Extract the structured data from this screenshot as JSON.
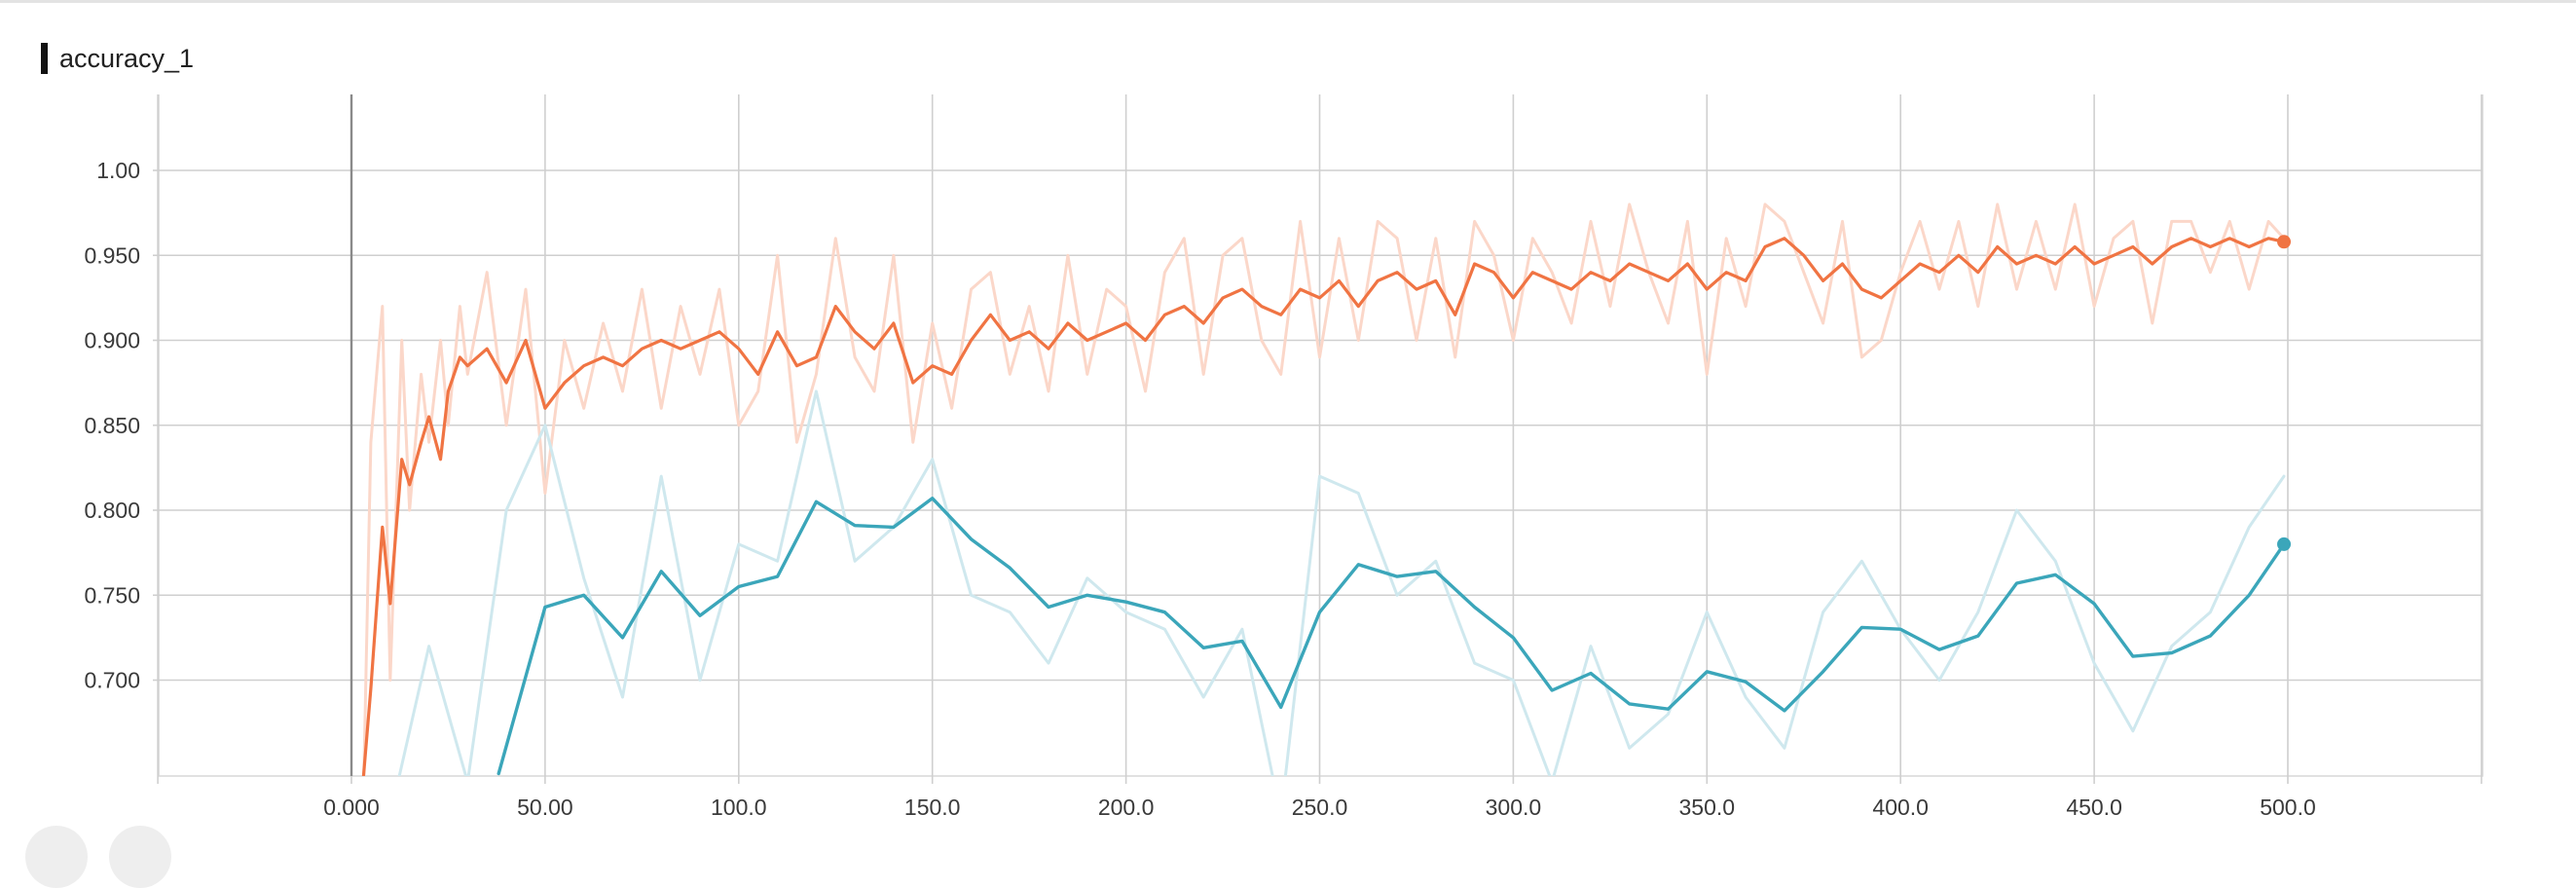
{
  "card": {
    "title": "accuracy_1"
  },
  "colors": {
    "train": "#f07443",
    "train_raw": "#fbd7c9",
    "eval": "#3ba6ba",
    "eval_raw": "#cfe8ee",
    "grid": "#cfcfcf"
  },
  "chart_data": {
    "type": "line",
    "title": "accuracy_1",
    "xlabel": "",
    "ylabel": "",
    "xlim": [
      -100,
      500
    ],
    "ylim": [
      0.645,
      1.045
    ],
    "x_tick_labels": [
      "0.000",
      "50.00",
      "100.0",
      "150.0",
      "200.0",
      "250.0",
      "300.0",
      "350.0",
      "400.0",
      "450.0",
      "500.0"
    ],
    "x_ticks": [
      0,
      50,
      100,
      150,
      200,
      250,
      300,
      350,
      400,
      450,
      500
    ],
    "y_tick_labels": [
      "0.700",
      "0.750",
      "0.800",
      "0.850",
      "0.900",
      "0.950",
      "1.00"
    ],
    "y_ticks": [
      0.7,
      0.75,
      0.8,
      0.85,
      0.9,
      0.95,
      1.0
    ],
    "grid": true,
    "series": [
      {
        "key": "train_smoothed",
        "role": "smoothed",
        "x": [
          3,
          5,
          8,
          10,
          13,
          15,
          18,
          20,
          23,
          25,
          28,
          30,
          35,
          40,
          45,
          50,
          55,
          60,
          65,
          70,
          75,
          80,
          85,
          90,
          95,
          100,
          105,
          110,
          115,
          120,
          125,
          130,
          135,
          140,
          145,
          150,
          155,
          160,
          165,
          170,
          175,
          180,
          185,
          190,
          195,
          200,
          205,
          210,
          215,
          220,
          225,
          230,
          235,
          240,
          245,
          250,
          255,
          260,
          265,
          270,
          275,
          280,
          285,
          290,
          295,
          300,
          305,
          310,
          315,
          320,
          325,
          330,
          335,
          340,
          345,
          350,
          355,
          360,
          365,
          370,
          375,
          380,
          385,
          390,
          395,
          400,
          405,
          410,
          415,
          420,
          425,
          430,
          435,
          440,
          445,
          450,
          455,
          460,
          465,
          470,
          475,
          480,
          485,
          490,
          495,
          499
        ],
        "y": [
          0.64,
          0.695,
          0.79,
          0.745,
          0.83,
          0.815,
          0.84,
          0.855,
          0.83,
          0.87,
          0.89,
          0.885,
          0.895,
          0.875,
          0.9,
          0.86,
          0.875,
          0.885,
          0.89,
          0.885,
          0.895,
          0.9,
          0.895,
          0.9,
          0.905,
          0.895,
          0.88,
          0.905,
          0.885,
          0.89,
          0.92,
          0.905,
          0.895,
          0.91,
          0.875,
          0.885,
          0.88,
          0.9,
          0.915,
          0.9,
          0.905,
          0.895,
          0.91,
          0.9,
          0.905,
          0.91,
          0.9,
          0.915,
          0.92,
          0.91,
          0.925,
          0.93,
          0.92,
          0.915,
          0.93,
          0.925,
          0.935,
          0.92,
          0.935,
          0.94,
          0.93,
          0.935,
          0.915,
          0.945,
          0.94,
          0.925,
          0.94,
          0.935,
          0.93,
          0.94,
          0.935,
          0.945,
          0.94,
          0.935,
          0.945,
          0.93,
          0.94,
          0.935,
          0.955,
          0.96,
          0.95,
          0.935,
          0.945,
          0.93,
          0.925,
          0.935,
          0.945,
          0.94,
          0.95,
          0.94,
          0.955,
          0.945,
          0.95,
          0.945,
          0.955,
          0.945,
          0.95,
          0.955,
          0.945,
          0.955,
          0.96,
          0.955,
          0.96,
          0.955,
          0.96,
          0.958
        ]
      },
      {
        "key": "train_raw",
        "role": "raw",
        "x": [
          3,
          5,
          8,
          10,
          13,
          15,
          18,
          20,
          23,
          25,
          28,
          30,
          35,
          40,
          45,
          50,
          55,
          60,
          65,
          70,
          75,
          80,
          85,
          90,
          95,
          100,
          105,
          110,
          115,
          120,
          125,
          130,
          135,
          140,
          145,
          150,
          155,
          160,
          165,
          170,
          175,
          180,
          185,
          190,
          195,
          200,
          205,
          210,
          215,
          220,
          225,
          230,
          235,
          240,
          245,
          250,
          255,
          260,
          265,
          270,
          275,
          280,
          285,
          290,
          295,
          300,
          305,
          310,
          315,
          320,
          325,
          330,
          335,
          340,
          345,
          350,
          355,
          360,
          365,
          370,
          375,
          380,
          385,
          390,
          395,
          400,
          405,
          410,
          415,
          420,
          425,
          430,
          435,
          440,
          445,
          450,
          455,
          460,
          465,
          470,
          475,
          480,
          485,
          490,
          495,
          499
        ],
        "y": [
          0.62,
          0.84,
          0.92,
          0.7,
          0.9,
          0.8,
          0.88,
          0.84,
          0.9,
          0.85,
          0.92,
          0.88,
          0.94,
          0.85,
          0.93,
          0.81,
          0.9,
          0.86,
          0.91,
          0.87,
          0.93,
          0.86,
          0.92,
          0.88,
          0.93,
          0.85,
          0.87,
          0.95,
          0.84,
          0.88,
          0.96,
          0.89,
          0.87,
          0.95,
          0.84,
          0.91,
          0.86,
          0.93,
          0.94,
          0.88,
          0.92,
          0.87,
          0.95,
          0.88,
          0.93,
          0.92,
          0.87,
          0.94,
          0.96,
          0.88,
          0.95,
          0.96,
          0.9,
          0.88,
          0.97,
          0.89,
          0.96,
          0.9,
          0.97,
          0.96,
          0.9,
          0.96,
          0.89,
          0.97,
          0.95,
          0.9,
          0.96,
          0.94,
          0.91,
          0.97,
          0.92,
          0.98,
          0.94,
          0.91,
          0.97,
          0.88,
          0.96,
          0.92,
          0.98,
          0.97,
          0.94,
          0.91,
          0.97,
          0.89,
          0.9,
          0.94,
          0.97,
          0.93,
          0.97,
          0.92,
          0.98,
          0.93,
          0.97,
          0.93,
          0.98,
          0.92,
          0.96,
          0.97,
          0.91,
          0.97,
          0.97,
          0.94,
          0.97,
          0.93,
          0.97,
          0.96
        ]
      },
      {
        "key": "eval_smoothed",
        "role": "smoothed",
        "x": [
          38,
          50,
          60,
          70,
          80,
          90,
          100,
          110,
          120,
          130,
          140,
          150,
          160,
          170,
          180,
          190,
          200,
          210,
          220,
          230,
          240,
          250,
          260,
          270,
          280,
          290,
          300,
          310,
          320,
          330,
          340,
          350,
          360,
          370,
          380,
          390,
          400,
          410,
          420,
          430,
          440,
          450,
          460,
          470,
          480,
          490,
          499
        ],
        "y": [
          0.645,
          0.743,
          0.75,
          0.725,
          0.764,
          0.738,
          0.755,
          0.761,
          0.805,
          0.791,
          0.79,
          0.807,
          0.783,
          0.766,
          0.743,
          0.75,
          0.746,
          0.74,
          0.719,
          0.723,
          0.684,
          0.74,
          0.768,
          0.761,
          0.764,
          0.743,
          0.725,
          0.694,
          0.704,
          0.686,
          0.683,
          0.705,
          0.699,
          0.682,
          0.705,
          0.731,
          0.73,
          0.718,
          0.726,
          0.757,
          0.762,
          0.745,
          0.714,
          0.716,
          0.726,
          0.75,
          0.78
        ]
      },
      {
        "key": "eval_raw",
        "role": "raw",
        "x": [
          10,
          20,
          30,
          40,
          50,
          60,
          70,
          80,
          90,
          100,
          110,
          120,
          130,
          140,
          150,
          160,
          170,
          180,
          190,
          200,
          210,
          220,
          230,
          240,
          250,
          260,
          270,
          280,
          290,
          300,
          310,
          320,
          330,
          340,
          350,
          360,
          370,
          380,
          390,
          400,
          410,
          420,
          430,
          440,
          450,
          460,
          470,
          480,
          490,
          499
        ],
        "y": [
          0.62,
          0.72,
          0.64,
          0.8,
          0.85,
          0.76,
          0.69,
          0.82,
          0.7,
          0.78,
          0.77,
          0.87,
          0.77,
          0.79,
          0.83,
          0.75,
          0.74,
          0.71,
          0.76,
          0.74,
          0.73,
          0.69,
          0.73,
          0.62,
          0.82,
          0.81,
          0.75,
          0.77,
          0.71,
          0.7,
          0.64,
          0.72,
          0.66,
          0.68,
          0.74,
          0.69,
          0.66,
          0.74,
          0.77,
          0.73,
          0.7,
          0.74,
          0.8,
          0.77,
          0.71,
          0.67,
          0.72,
          0.74,
          0.79,
          0.82
        ]
      }
    ]
  }
}
